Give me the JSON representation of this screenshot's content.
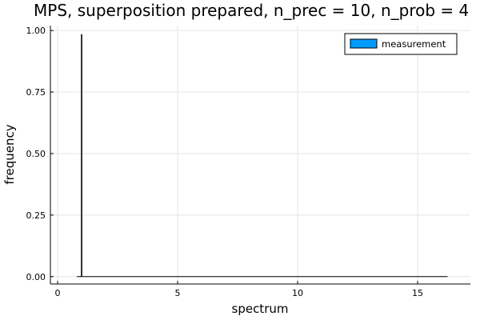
{
  "chart_data": {
    "type": "bar",
    "title": "MPS, superposition prepared, n_prec = 10, n_prob = 4",
    "xlabel": "spectrum",
    "ylabel": "frequency",
    "xlim": [
      -0.3,
      17.2
    ],
    "ylim": [
      -0.03,
      1.02
    ],
    "xticks": [
      0,
      5,
      10,
      15
    ],
    "xtick_labels": [
      "0",
      "5",
      "10",
      "15"
    ],
    "yticks": [
      0.0,
      0.25,
      0.5,
      0.75,
      1.0
    ],
    "ytick_labels": [
      "0.00",
      "0.25",
      "0.50",
      "0.75",
      "1.00"
    ],
    "grid": true,
    "legend_position": "top-right",
    "series": [
      {
        "name": "measurement",
        "color": "#009AFA",
        "x": [
          1.0
        ],
        "values": [
          0.985
        ]
      }
    ],
    "baseline_range": [
      0.8,
      16.25
    ]
  }
}
